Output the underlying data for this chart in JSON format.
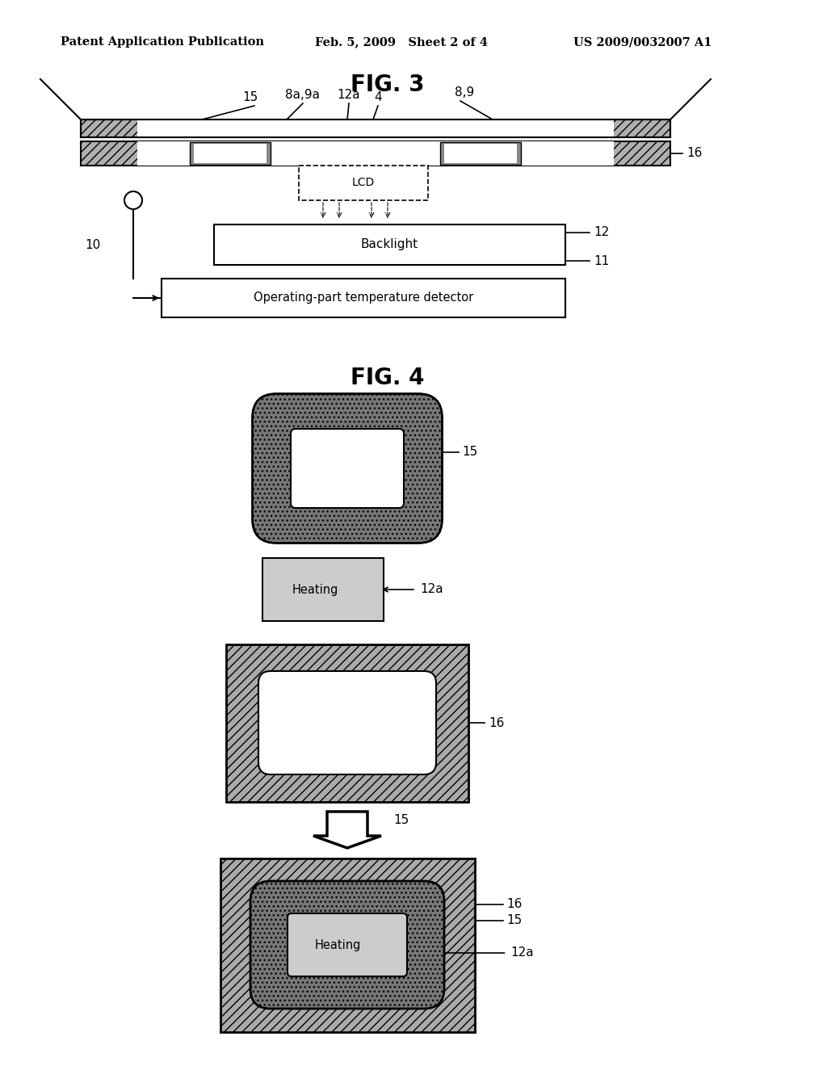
{
  "title_text": "Patent Application Publication",
  "date_text": "Feb. 5, 2009   Sheet 2 of 4",
  "patent_text": "US 2009/0032007 A1",
  "fig3_title": "FIG. 3",
  "fig4_title": "FIG. 4",
  "background_color": "#ffffff",
  "label_fontsize": 11,
  "title_fontsize": 20,
  "header_fontsize": 10.5
}
